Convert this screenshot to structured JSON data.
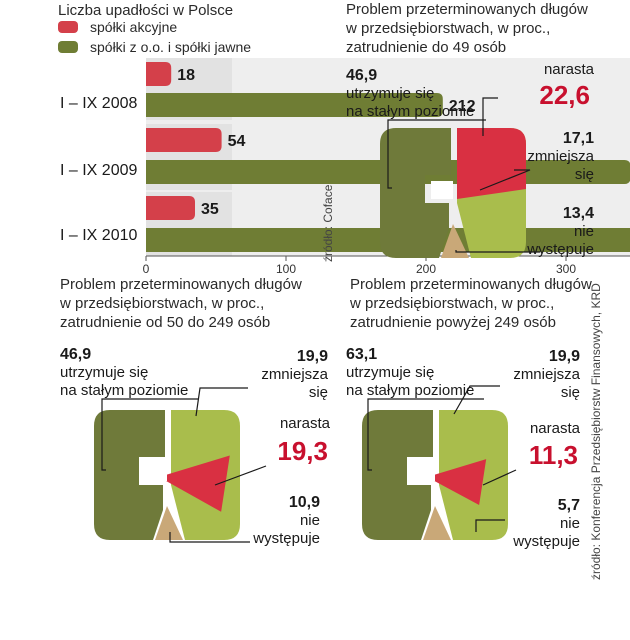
{
  "colors": {
    "accent": "#c8102e",
    "sa_fill": "#d4404a",
    "zoo_fill": "#6f7d34",
    "maintain": "#6f7a3a",
    "decrease": "#a9bd4c",
    "increase": "#d93042",
    "none": "#c9a878"
  },
  "bar_chart": {
    "title": "Liczba upadłości w Polsce",
    "legend": [
      "spółki akcyjne",
      "spółki z o.o. i spółki jawne"
    ],
    "source": "źródło: Coface"
  },
  "rings": {
    "source": "źródło: Konferencja Przedsiębiorstw Finansowych, KRD",
    "items": [
      {
        "title_lines": [
          "Problem przeterminowanych długów",
          "w przedsiębiorstwach, w proc.,",
          "zatrudnienie do 49 osób"
        ],
        "maintain": {
          "value": "46,9",
          "lines": [
            "utrzymuje się",
            "na stałym poziomie"
          ]
        },
        "increase": {
          "value": "22,6",
          "lines": [
            "narasta"
          ]
        },
        "decrease": {
          "value": "17,1",
          "lines": [
            "zmniejsza",
            "się"
          ]
        },
        "none": {
          "value": "13,4",
          "lines": [
            "nie",
            "występuje"
          ]
        }
      },
      {
        "title_lines": [
          "Problem przeterminowanych długów",
          "w przedsiębiorstwach, w proc.,",
          "zatrudnienie od 50 do 249 osób"
        ],
        "maintain": {
          "value": "46,9",
          "lines": [
            "utrzymuje się",
            "na stałym poziomie"
          ]
        },
        "increase": {
          "value": "19,3",
          "lines": [
            "narasta"
          ]
        },
        "decrease": {
          "value": "19,9",
          "lines": [
            "zmniejsza",
            "się"
          ]
        },
        "none": {
          "value": "10,9",
          "lines": [
            "nie",
            "występuje"
          ]
        }
      },
      {
        "title_lines": [
          "Problem przeterminowanych długów",
          "w przedsiębiorstwach, w proc.,",
          "zatrudnienie powyżej 249 osób"
        ],
        "maintain": {
          "value": "63,1",
          "lines": [
            "utrzymuje się",
            "na stałym poziomie"
          ]
        },
        "increase": {
          "value": "11,3",
          "lines": [
            "narasta"
          ]
        },
        "decrease": {
          "value": "19,9",
          "lines": [
            "zmniejsza",
            "się"
          ]
        },
        "none": {
          "value": "5,7",
          "lines": [
            "nie",
            "występuje"
          ]
        }
      }
    ]
  },
  "chart_data": [
    {
      "type": "bar",
      "orientation": "horizontal",
      "title": "Liczba upadłości w Polsce",
      "categories": [
        "I – IX 2008",
        "I – IX 2009",
        "I – IX 2010"
      ],
      "series": [
        {
          "name": "spółki akcyjne",
          "values": [
            18,
            54,
            35
          ]
        },
        {
          "name": "spółki z o.o. i spółki jawne",
          "values": [
            212,
            346,
            373
          ]
        }
      ],
      "xlim": [
        0,
        400
      ],
      "xticks": [
        0,
        100,
        200,
        300,
        400
      ],
      "grid": false,
      "legend": "top-left"
    },
    {
      "type": "pie",
      "title": "Problem przeterminowanych długów w przedsiębiorstwach, w proc., zatrudnienie do 49 osób",
      "labels": [
        "utrzymuje się na stałym poziomie",
        "narasta",
        "zmniejsza się",
        "nie występuje"
      ],
      "values": [
        46.9,
        22.6,
        17.1,
        13.4
      ]
    },
    {
      "type": "pie",
      "title": "Problem przeterminowanych długów w przedsiębiorstwach, w proc., zatrudnienie od 50 do 249 osób",
      "labels": [
        "utrzymuje się na stałym poziomie",
        "narasta",
        "zmniejsza się",
        "nie występuje"
      ],
      "values": [
        46.9,
        19.3,
        19.9,
        10.9
      ]
    },
    {
      "type": "pie",
      "title": "Problem przeterminowanych długów w przedsiębiorstwach, w proc., zatrudnienie powyżej 249 osób",
      "labels": [
        "utrzymuje się na stałym poziomie",
        "narasta",
        "zmniejsza się",
        "nie występuje"
      ],
      "values": [
        63.1,
        11.3,
        19.9,
        5.7
      ]
    }
  ]
}
